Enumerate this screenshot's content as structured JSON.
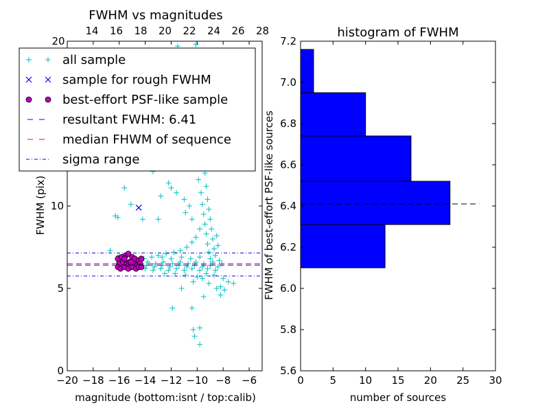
{
  "chart_data": [
    {
      "type": "scatter",
      "title": "FWHM vs magnitudes",
      "xlabel": "magnitude (bottom:isnt / top:calib)",
      "ylabel": "FWHM (pix)",
      "xlim": [
        -20,
        -5
      ],
      "ylim": [
        0,
        20
      ],
      "xticks": [
        -20,
        -18,
        -16,
        -14,
        -12,
        -10,
        -8,
        -6
      ],
      "xtick_labels": [
        "−20",
        "−18",
        "−16",
        "−14",
        "−12",
        "−10",
        "−8",
        "−6"
      ],
      "yticks": [
        0,
        5,
        10
      ],
      "ytick_labels": [
        "0",
        "5",
        "10"
      ],
      "top_xticks": [
        14,
        16,
        18,
        20,
        22,
        24,
        26,
        28
      ],
      "top_xtick_labels": [
        "14",
        "16",
        "18",
        "20",
        "22",
        "24",
        "26",
        "28"
      ],
      "top_extra_label": "20",
      "legend": [
        {
          "label": "all sample",
          "marker": "plus",
          "color": "#00bfbf"
        },
        {
          "label": "sample for rough FWHM",
          "marker": "x",
          "color": "#0000ff"
        },
        {
          "label": "best-effort PSF-like sample",
          "marker": "circle",
          "color": "#bf00bf"
        },
        {
          "label": "resultant FWHM: 6.41",
          "marker": "dash",
          "color": "#0000ff"
        },
        {
          "label": "median FHWM of sequence",
          "marker": "dash",
          "color": "#ff0000"
        },
        {
          "label": "sigma range",
          "marker": "dashdot",
          "color": "#0000ff"
        }
      ],
      "lines": {
        "resultant_fwhm": 6.41,
        "median_fwhm": 6.5,
        "sigma_upper": 7.15,
        "sigma_lower": 5.75
      },
      "rough_sample": [
        {
          "x": -14.5,
          "y": 9.9
        }
      ],
      "all_sample": [
        [
          -11.5,
          19.7
        ],
        [
          -10.7,
          19.3
        ],
        [
          -10.1,
          19.8
        ],
        [
          -10.3,
          18.6
        ],
        [
          -9.7,
          18.1
        ],
        [
          -10.5,
          17.3
        ],
        [
          -10.0,
          16.6
        ],
        [
          -9.5,
          15.8
        ],
        [
          -10.8,
          15.2
        ],
        [
          -9.9,
          14.6
        ],
        [
          -10.2,
          13.8
        ],
        [
          -9.6,
          13.2
        ],
        [
          -15.5,
          14.4
        ],
        [
          -16.2,
          13.2
        ],
        [
          -15.8,
          12.3
        ],
        [
          -14.8,
          12.6
        ],
        [
          -13.4,
          12.1
        ],
        [
          -12.2,
          11.4
        ],
        [
          -15.6,
          11.1
        ],
        [
          -12.8,
          10.6
        ],
        [
          -15.1,
          10.1
        ],
        [
          -16.3,
          9.4
        ],
        [
          -16.1,
          9.3
        ],
        [
          -13.0,
          9.2
        ],
        [
          -14.2,
          9.2
        ],
        [
          -12.0,
          11.1
        ],
        [
          -11.6,
          10.8
        ],
        [
          -11.0,
          10.4
        ],
        [
          -10.6,
          10.0
        ],
        [
          -10.9,
          9.6
        ],
        [
          -10.4,
          9.2
        ],
        [
          -9.8,
          12.6
        ],
        [
          -9.4,
          12.0
        ],
        [
          -9.9,
          11.6
        ],
        [
          -9.3,
          11.2
        ],
        [
          -9.7,
          10.8
        ],
        [
          -9.2,
          10.4
        ],
        [
          -9.6,
          10.1
        ],
        [
          -9.1,
          9.8
        ],
        [
          -9.5,
          9.5
        ],
        [
          -9.0,
          9.2
        ],
        [
          -9.4,
          8.9
        ],
        [
          -8.9,
          8.6
        ],
        [
          -9.3,
          8.3
        ],
        [
          -8.8,
          8.0
        ],
        [
          -9.2,
          7.7
        ],
        [
          -8.7,
          7.4
        ],
        [
          -9.1,
          7.2
        ],
        [
          -8.6,
          7.0
        ],
        [
          -8.4,
          7.6
        ],
        [
          -8.5,
          8.2
        ],
        [
          -9.8,
          8.6
        ],
        [
          -10.1,
          8.1
        ],
        [
          -10.4,
          7.8
        ],
        [
          -10.8,
          7.5
        ],
        [
          -11.3,
          7.3
        ],
        [
          -11.8,
          7.2
        ],
        [
          -12.4,
          7.1
        ],
        [
          -13.0,
          7.0
        ],
        [
          -13.5,
          6.9
        ],
        [
          -14.1,
          6.8
        ],
        [
          -16.7,
          7.3
        ],
        [
          -16.0,
          7.0
        ],
        [
          -12.7,
          6.9
        ],
        [
          -12.0,
          6.8
        ],
        [
          -11.2,
          6.9
        ],
        [
          -10.5,
          6.8
        ],
        [
          -9.8,
          6.9
        ],
        [
          -9.0,
          6.8
        ],
        [
          -8.3,
          6.7
        ],
        [
          -13.8,
          6.6
        ],
        [
          -13.2,
          6.5
        ],
        [
          -12.6,
          6.6
        ],
        [
          -11.9,
          6.5
        ],
        [
          -11.3,
          6.6
        ],
        [
          -10.7,
          6.5
        ],
        [
          -10.1,
          6.6
        ],
        [
          -9.5,
          6.5
        ],
        [
          -8.8,
          6.6
        ],
        [
          -8.1,
          6.5
        ],
        [
          -13.9,
          6.4
        ],
        [
          -13.3,
          6.3
        ],
        [
          -12.7,
          6.4
        ],
        [
          -12.1,
          6.3
        ],
        [
          -11.4,
          6.4
        ],
        [
          -10.8,
          6.3
        ],
        [
          -10.2,
          6.4
        ],
        [
          -9.6,
          6.3
        ],
        [
          -9.0,
          6.4
        ],
        [
          -8.4,
          6.3
        ],
        [
          -14.0,
          6.2
        ],
        [
          -13.4,
          6.1
        ],
        [
          -12.8,
          6.2
        ],
        [
          -12.2,
          6.1
        ],
        [
          -11.6,
          6.2
        ],
        [
          -11.0,
          6.1
        ],
        [
          -10.4,
          6.2
        ],
        [
          -9.8,
          6.1
        ],
        [
          -9.2,
          6.2
        ],
        [
          -8.6,
          6.1
        ],
        [
          -12.5,
          5.9
        ],
        [
          -11.7,
          5.9
        ],
        [
          -10.9,
          5.8
        ],
        [
          -10.0,
          5.7
        ],
        [
          -9.3,
          5.9
        ],
        [
          -8.7,
          5.8
        ],
        [
          -8.0,
          5.6
        ],
        [
          -7.6,
          5.4
        ],
        [
          -7.2,
          5.3
        ],
        [
          -8.2,
          5.1
        ],
        [
          -9.6,
          5.6
        ],
        [
          -10.3,
          5.4
        ],
        [
          -9.1,
          5.3
        ],
        [
          -8.5,
          5.0
        ],
        [
          -7.9,
          4.9
        ],
        [
          -8.2,
          4.6
        ],
        [
          -11.2,
          5.0
        ],
        [
          -9.5,
          4.5
        ],
        [
          -10.4,
          3.8
        ],
        [
          -11.9,
          3.8
        ],
        [
          -9.8,
          2.6
        ],
        [
          -10.3,
          2.5
        ],
        [
          -10.2,
          2.1
        ],
        [
          -9.8,
          1.6
        ]
      ],
      "best_sample": [
        [
          -16.1,
          6.8
        ],
        [
          -15.8,
          6.9
        ],
        [
          -15.5,
          7.0
        ],
        [
          -15.3,
          7.1
        ],
        [
          -15.0,
          6.9
        ],
        [
          -14.8,
          6.8
        ],
        [
          -14.5,
          6.7
        ],
        [
          -14.3,
          6.8
        ],
        [
          -16.0,
          6.5
        ],
        [
          -15.7,
          6.6
        ],
        [
          -15.4,
          6.5
        ],
        [
          -15.2,
          6.6
        ],
        [
          -14.9,
          6.5
        ],
        [
          -14.6,
          6.4
        ],
        [
          -14.4,
          6.5
        ],
        [
          -16.1,
          6.3
        ],
        [
          -15.9,
          6.2
        ],
        [
          -15.6,
          6.3
        ],
        [
          -15.3,
          6.2
        ],
        [
          -15.0,
          6.3
        ],
        [
          -14.7,
          6.2
        ],
        [
          -14.5,
          6.3
        ],
        [
          -14.3,
          6.3
        ],
        [
          -15.1,
          6.6
        ],
        [
          -15.6,
          6.8
        ]
      ]
    },
    {
      "type": "bar",
      "orientation": "horizontal",
      "title": "histogram of FWHM",
      "xlabel": "number of sources",
      "ylabel": "FWHM of best-effort PSF-like sources",
      "xlim": [
        0,
        30
      ],
      "ylim": [
        5.6,
        7.2
      ],
      "xticks": [
        0,
        5,
        10,
        15,
        20,
        25,
        30
      ],
      "xtick_labels": [
        "0",
        "5",
        "10",
        "15",
        "20",
        "25",
        "30"
      ],
      "yticks": [
        5.6,
        5.8,
        6.0,
        6.2,
        6.4,
        6.6,
        6.8,
        7.0,
        7.2
      ],
      "ytick_labels": [
        "5.6",
        "5.8",
        "6.0",
        "6.2",
        "6.4",
        "6.6",
        "6.8",
        "7.0",
        "7.2"
      ],
      "bins": [
        {
          "low": 6.1,
          "high": 6.31,
          "count": 13
        },
        {
          "low": 6.31,
          "high": 6.52,
          "count": 23
        },
        {
          "low": 6.52,
          "high": 6.74,
          "count": 17
        },
        {
          "low": 6.74,
          "high": 6.95,
          "count": 10
        },
        {
          "low": 6.95,
          "high": 7.16,
          "count": 2
        }
      ],
      "bar_color": "#0000ff",
      "reference_line": {
        "y": 6.41,
        "x_range": [
          0,
          27.5
        ],
        "style": "dashed",
        "color": "#000000"
      }
    }
  ]
}
